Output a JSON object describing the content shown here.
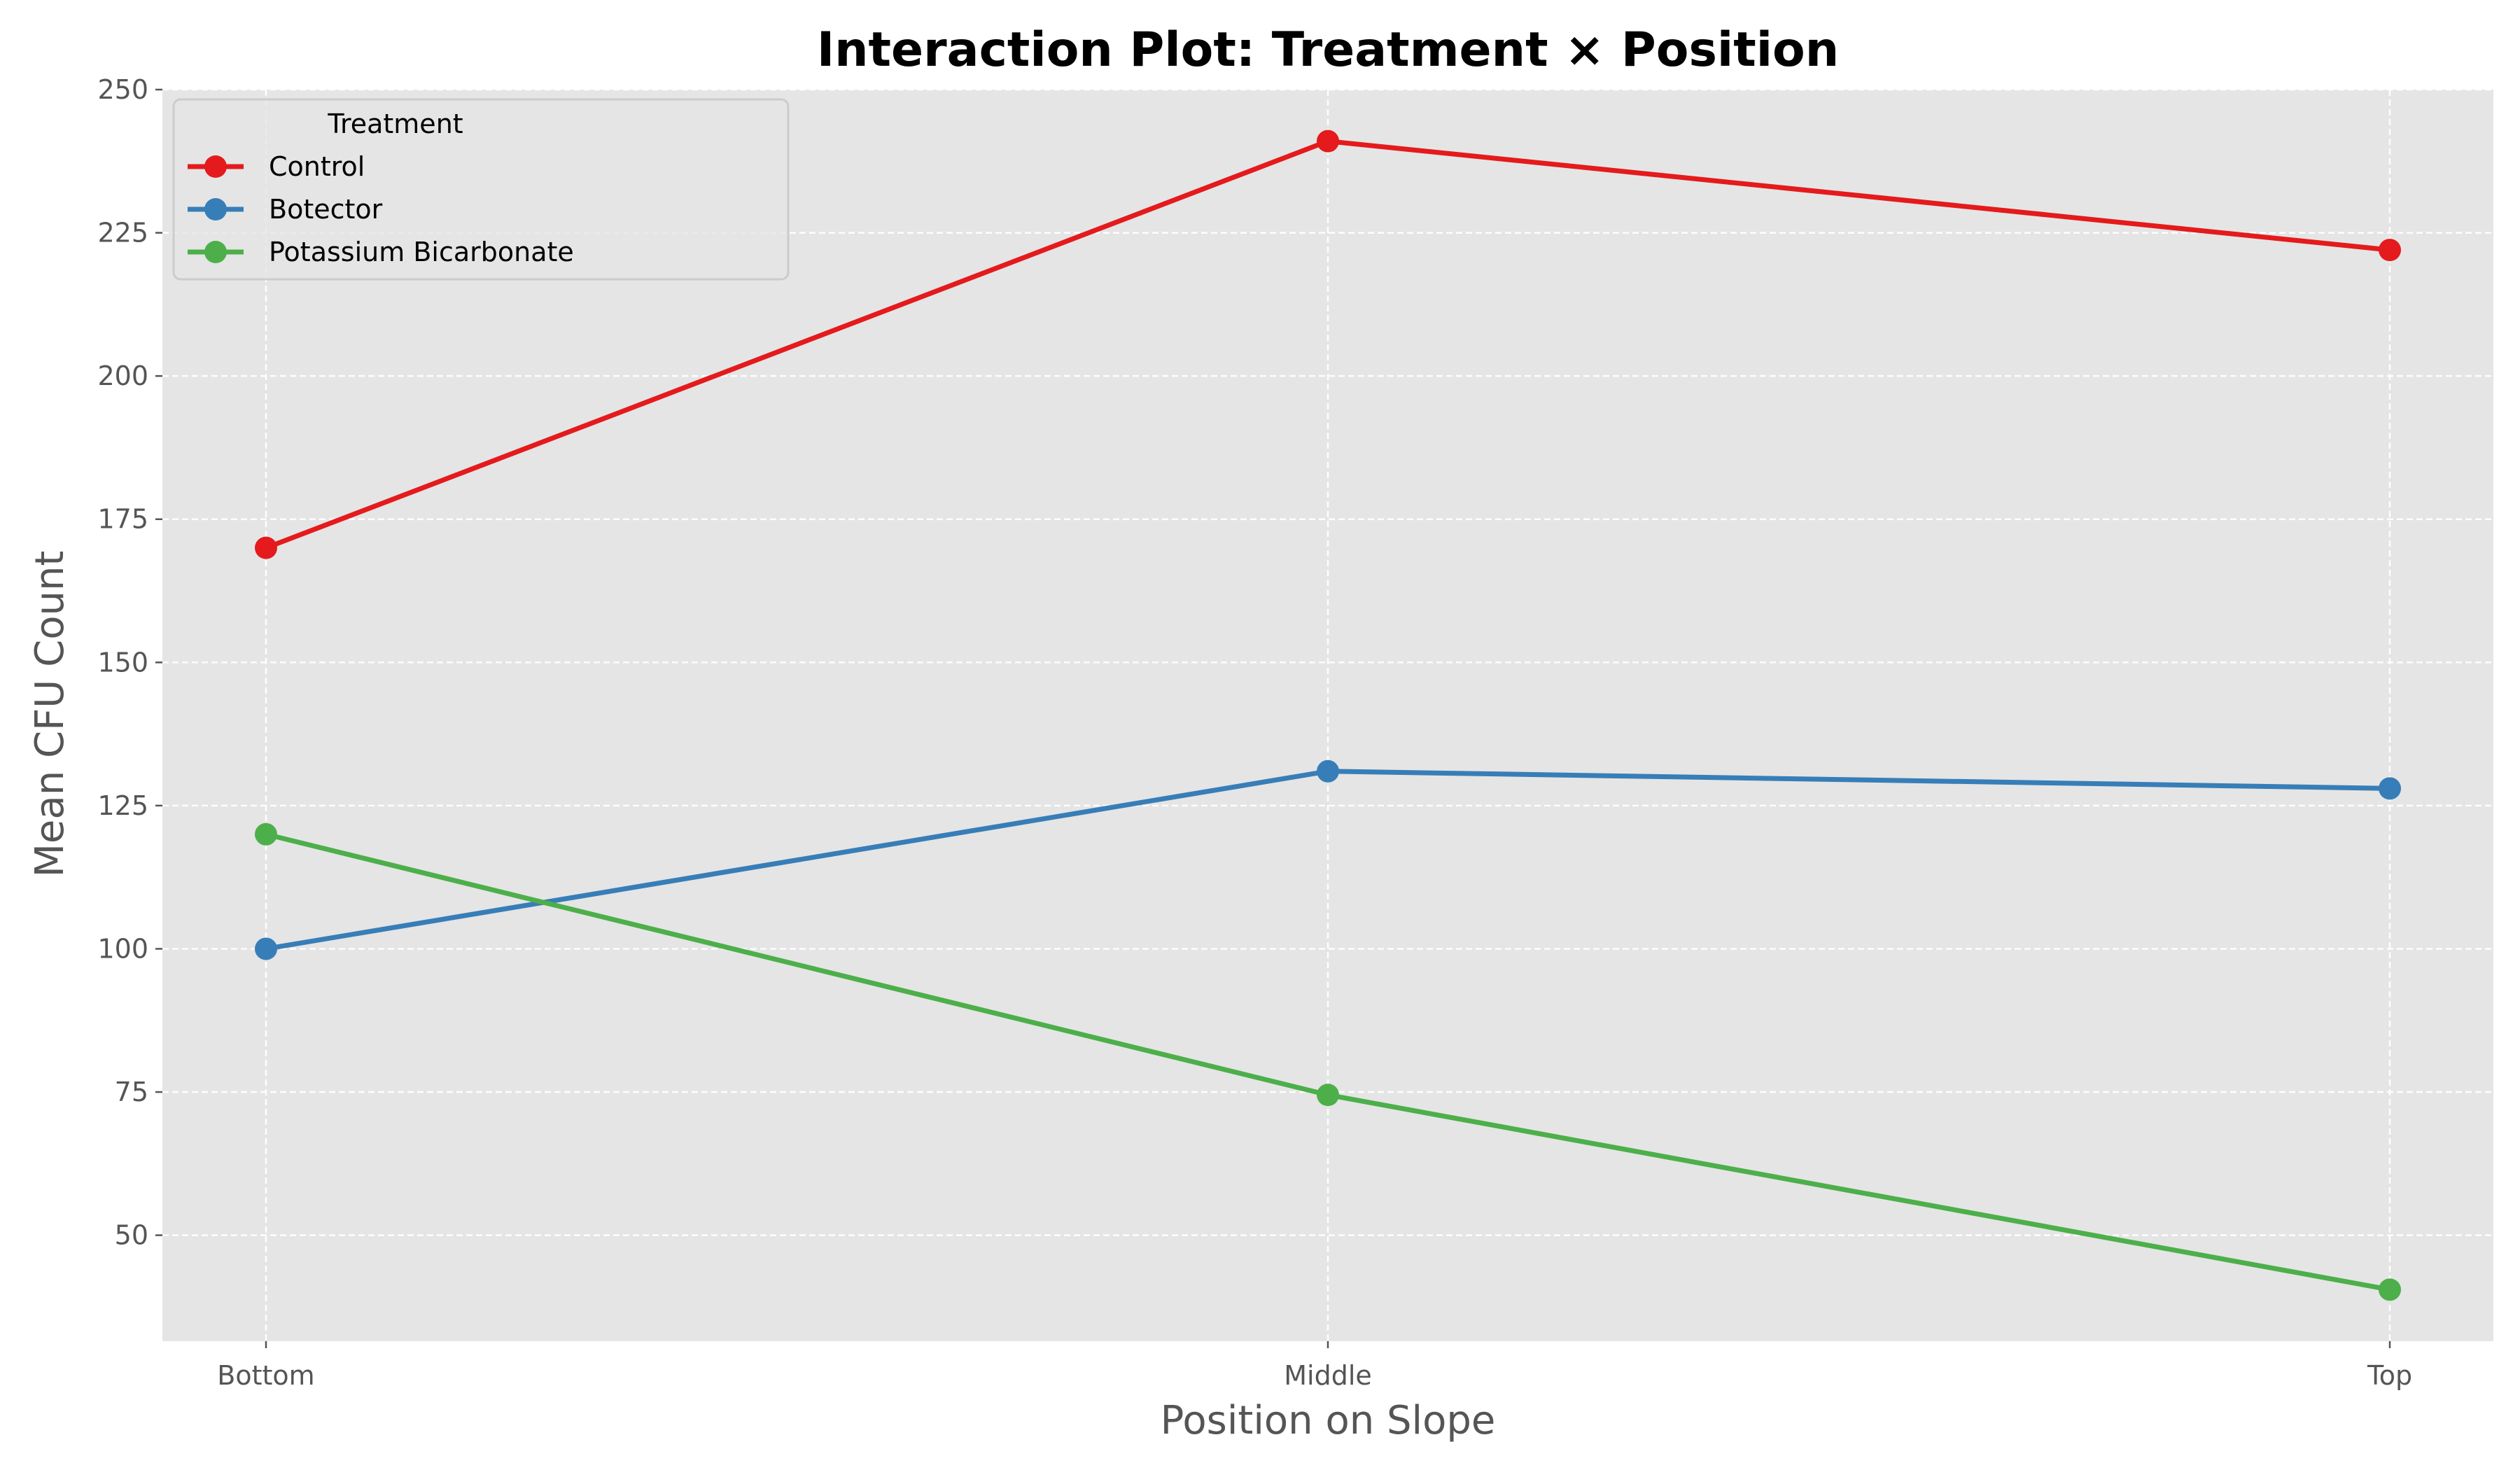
{
  "chart_data": {
    "type": "line",
    "title": "Interaction Plot: Treatment × Position",
    "xlabel": "Position on Slope",
    "ylabel": "Mean CFU Count",
    "categories": [
      "Bottom",
      "Middle",
      "Top"
    ],
    "ylim": [
      31.5,
      250
    ],
    "yticks": [
      50,
      75,
      100,
      125,
      150,
      175,
      200,
      225,
      250
    ],
    "grid": true,
    "legend": {
      "title": "Treatment",
      "placement": "upper-left"
    },
    "series": [
      {
        "name": "Control",
        "color": "#e41a1c",
        "values": [
          170,
          241,
          222
        ]
      },
      {
        "name": "Botector",
        "color": "#377eb8",
        "values": [
          100,
          131,
          128
        ]
      },
      {
        "name": "Potassium Bicarbonate",
        "color": "#4daf4a",
        "values": [
          120,
          74.5,
          40.5
        ]
      }
    ]
  }
}
